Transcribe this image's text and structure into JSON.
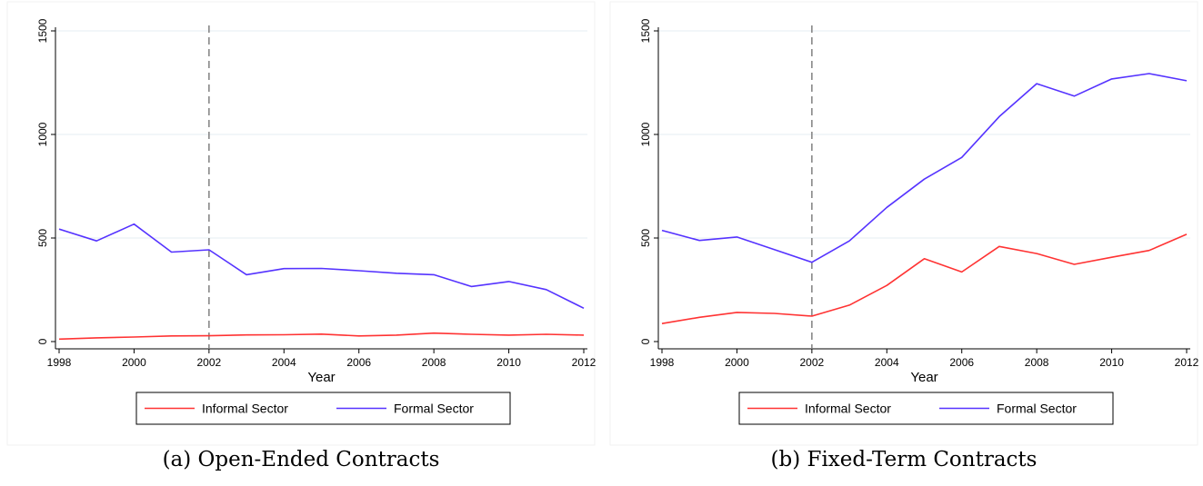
{
  "chart_data": [
    {
      "type": "line",
      "caption": "(a) Open-Ended Contracts",
      "xlabel": "Year",
      "ylabel": "",
      "x": [
        1998,
        1999,
        2000,
        2001,
        2002,
        2003,
        2004,
        2005,
        2006,
        2007,
        2008,
        2009,
        2010,
        2011,
        2012
      ],
      "xticks": [
        1998,
        2000,
        2002,
        2004,
        2006,
        2008,
        2010,
        2012
      ],
      "yticks": [
        0,
        500,
        1000,
        1500
      ],
      "xlim": [
        1998,
        2012
      ],
      "ylim": [
        0,
        1500
      ],
      "grid": "horizontal",
      "vline": 2002,
      "legend_position": "bottom",
      "series": [
        {
          "name": "Informal Sector",
          "color": "#ff3333",
          "values": [
            12,
            18,
            22,
            27,
            28,
            32,
            33,
            36,
            27,
            31,
            41,
            35,
            31,
            35,
            31
          ]
        },
        {
          "name": "Formal Sector",
          "color": "#5533ff",
          "values": [
            543,
            486,
            567,
            432,
            443,
            323,
            352,
            353,
            342,
            330,
            323,
            266,
            290,
            251,
            161
          ]
        }
      ]
    },
    {
      "type": "line",
      "caption": "(b) Fixed-Term Contracts",
      "xlabel": "Year",
      "ylabel": "",
      "x": [
        1998,
        1999,
        2000,
        2001,
        2002,
        2003,
        2004,
        2005,
        2006,
        2007,
        2008,
        2009,
        2010,
        2011,
        2012
      ],
      "xticks": [
        1998,
        2000,
        2002,
        2004,
        2006,
        2008,
        2010,
        2012
      ],
      "yticks": [
        0,
        500,
        1000,
        1500
      ],
      "xlim": [
        1998,
        2012
      ],
      "ylim": [
        0,
        1500
      ],
      "grid": "horizontal",
      "vline": 2002,
      "legend_position": "bottom",
      "series": [
        {
          "name": "Informal Sector",
          "color": "#ff3333",
          "values": [
            87,
            117,
            141,
            136,
            123,
            176,
            271,
            400,
            336,
            459,
            425,
            373,
            407,
            440,
            518
          ]
        },
        {
          "name": "Formal Sector",
          "color": "#5533ff",
          "values": [
            537,
            488,
            505,
            444,
            383,
            486,
            648,
            784,
            889,
            1086,
            1245,
            1185,
            1268,
            1294,
            1259
          ]
        }
      ]
    }
  ]
}
